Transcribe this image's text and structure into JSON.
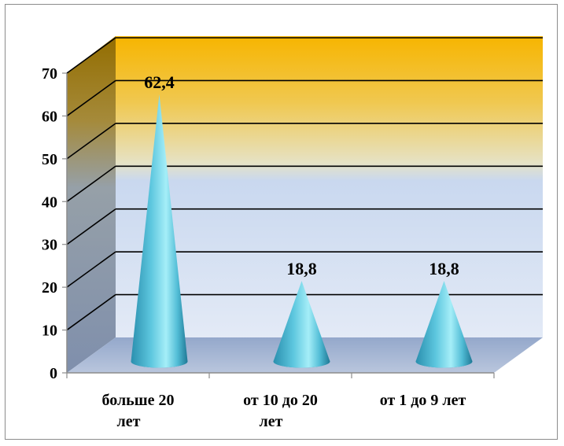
{
  "chart_data": {
    "type": "bar",
    "shape": "cone",
    "three_d": true,
    "categories": [
      [
        "больше 20",
        "лет"
      ],
      [
        "от 10 до 20",
        "лет"
      ],
      [
        "от 1 до 9 лет"
      ]
    ],
    "values": [
      62.4,
      18.8,
      18.8
    ],
    "data_labels": [
      "62,4",
      "18,8",
      "18,8"
    ],
    "ylim": [
      0,
      70
    ],
    "yticks": [
      "0",
      "10",
      "20",
      "30",
      "40",
      "50",
      "60",
      "70"
    ],
    "ytick_values": [
      0,
      10,
      20,
      30,
      40,
      50,
      60,
      70
    ],
    "grid": true,
    "legend": "none",
    "title": "",
    "xlabel": "",
    "ylabel": "",
    "colors": {
      "cone_light": "#8fe6f5",
      "cone_mid": "#3fb3cf",
      "cone_dark": "#1d6f8c",
      "wall_top": "#f5b800",
      "wall_mid": "#e8e4c8",
      "wall_bottom": "#e2e9f6",
      "side_wall_top": "#8a6a10",
      "side_wall_bottom": "#8a9db8",
      "floor": "#8fa3c6",
      "gridline": "#000000"
    }
  }
}
